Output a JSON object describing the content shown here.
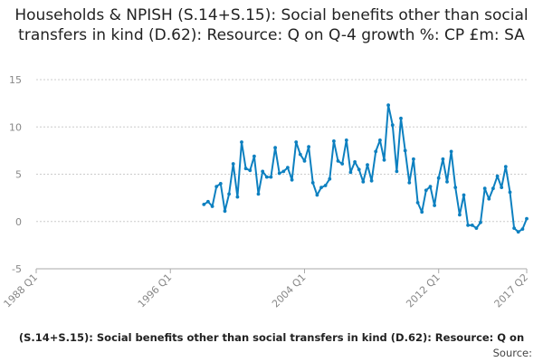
{
  "chart_data": {
    "type": "line",
    "title": "Households & NPISH (S.14+S.15): Social benefits other than social transfers in kind (D.62): Resource: Q on Q-4 growth %: CP £m: SA",
    "legend_label": "(S.14+S.15): Social benefits other than social transfers in kind (D.62): Resource: Q on",
    "source_label": "Source:",
    "xlabel": "",
    "ylabel": "",
    "x_range": [
      "1988 Q1",
      "2017 Q2"
    ],
    "x_ticks": [
      "1988 Q1",
      "1996 Q1",
      "2004 Q1",
      "2012 Q1",
      "2017 Q2"
    ],
    "y_ticks": [
      15,
      10,
      5,
      0,
      -5
    ],
    "ylim": [
      -5,
      15
    ],
    "grid": "horizontal-dashed",
    "colors": {
      "line": "#0d80c0",
      "grid": "#cccccc",
      "axis": "#aaaaaa"
    },
    "series": [
      {
        "name": "Households & NPISH (S.14+S.15): Social benefits other than social transfers in kind (D.62): Resource: Q on Q-4 growth %: CP £m: SA",
        "start": "1998 Q1",
        "values": [
          1.8,
          2.1,
          1.6,
          3.7,
          4.0,
          1.1,
          2.9,
          6.1,
          2.6,
          8.4,
          5.6,
          5.4,
          6.9,
          2.9,
          5.3,
          4.7,
          4.7,
          7.8,
          5.1,
          5.3,
          5.7,
          4.4,
          8.4,
          7.1,
          6.4,
          7.9,
          4.1,
          2.8,
          3.6,
          3.8,
          4.5,
          8.5,
          6.4,
          6.1,
          8.6,
          5.2,
          6.3,
          5.5,
          4.2,
          6.0,
          4.3,
          7.4,
          8.6,
          6.5,
          12.3,
          10.2,
          5.3,
          10.9,
          7.5,
          4.1,
          6.6,
          2.0,
          1.0,
          3.3,
          3.7,
          1.7,
          4.6,
          6.6,
          4.2,
          7.4,
          3.6,
          0.7,
          2.8,
          -0.4,
          -0.4,
          -0.7,
          -0.1,
          3.5,
          2.4,
          3.5,
          4.8,
          3.6,
          5.8,
          3.1,
          -0.7,
          -1.1,
          -0.8,
          0.3
        ]
      }
    ]
  }
}
